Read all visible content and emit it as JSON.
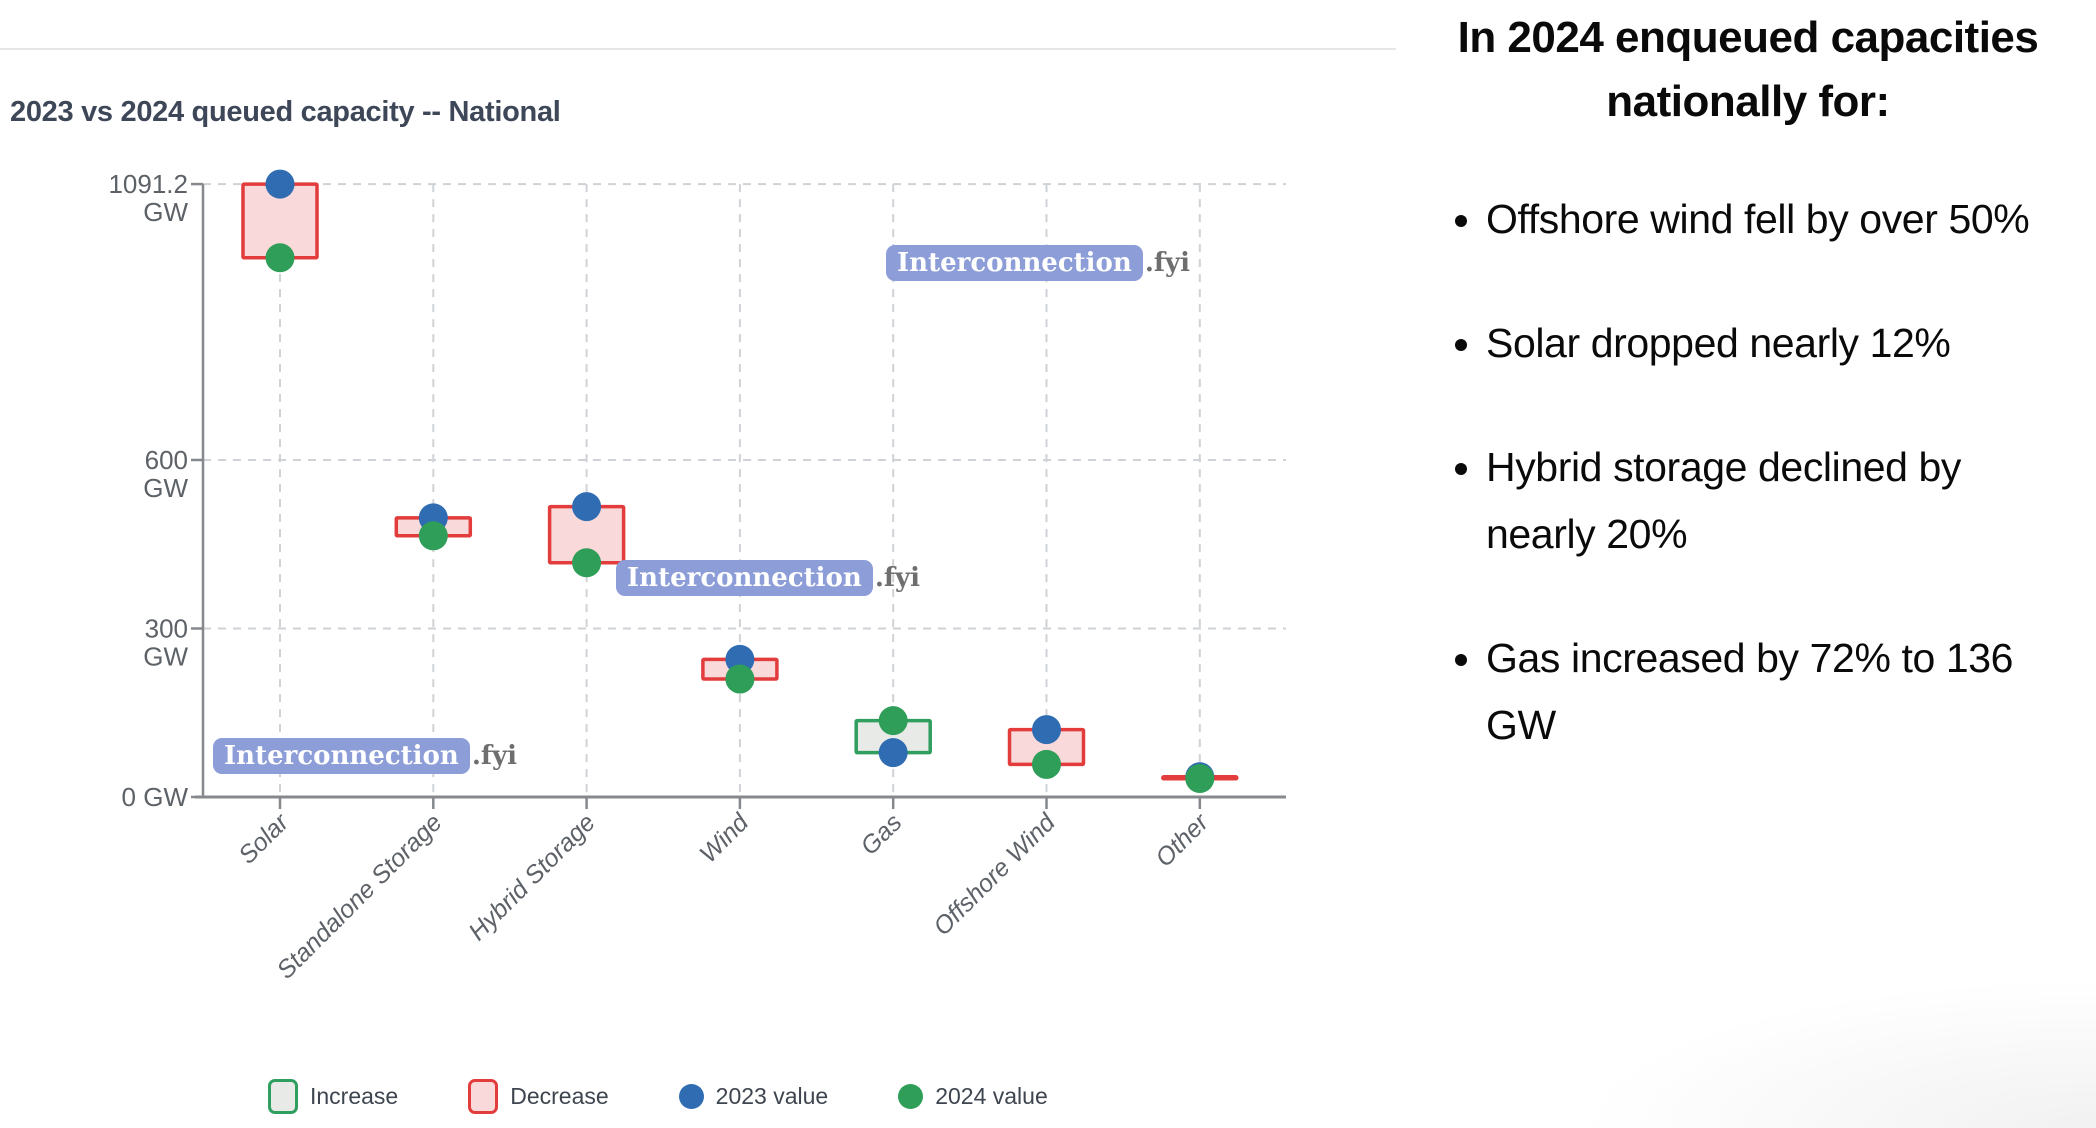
{
  "chart": {
    "watermark": {
      "pill": "Interconnection",
      "suffix": ".fyi"
    },
    "legend": [
      {
        "label": "Increase",
        "swatch": "box-increase"
      },
      {
        "label": "Decrease",
        "swatch": "box-decrease"
      },
      {
        "label": "2023 value",
        "swatch": "dot-2023"
      },
      {
        "label": "2024 value",
        "swatch": "dot-2024"
      }
    ]
  },
  "chart_data": {
    "type": "bar",
    "subtype": "range-dumbbell",
    "title": "2023 vs 2024 queued capacity -- National",
    "unit": "GW",
    "categories": [
      "Solar",
      "Standalone Storage",
      "Hybrid Storage",
      "Wind",
      "Gas",
      "Offshore Wind",
      "Other"
    ],
    "series": [
      {
        "name": "2023 value",
        "values": [
          1091.2,
          497,
          517,
          245,
          79,
          120,
          36
        ]
      },
      {
        "name": "2024 value",
        "values": [
          960,
          465,
          417,
          210,
          136,
          58,
          33
        ]
      }
    ],
    "change": [
      "decrease",
      "decrease",
      "decrease",
      "decrease",
      "increase",
      "decrease",
      "decrease"
    ],
    "yticks": [
      {
        "value": 1091.2,
        "lines": [
          "1091.2",
          "GW"
        ]
      },
      {
        "value": 600,
        "lines": [
          "600",
          "GW"
        ]
      },
      {
        "value": 300,
        "lines": [
          "300",
          "GW"
        ]
      },
      {
        "value": 0,
        "lines": [
          "0 GW"
        ]
      }
    ],
    "ylim": [
      0,
      1091.2
    ],
    "grid": "dashed",
    "legend_position": "bottom"
  },
  "colors": {
    "increase_fill": "#e7eae7",
    "increase_stroke": "#2f9e5f",
    "decrease_fill": "#f9d9da",
    "decrease_stroke": "#e23c3c",
    "dot_2023": "#2f6cb2",
    "dot_2024": "#2f9e59",
    "watermark_bg": "#8c9dd7",
    "watermark_suffix": "#6e6e6e",
    "title_text": "#3d4758"
  },
  "panel": {
    "heading": "In 2024 enqueued capacities nationally for:",
    "bullets": [
      "Offshore wind fell by over 50%",
      "Solar dropped nearly 12%",
      "Hybrid storage declined by nearly 20%",
      "Gas increased by 72% to 136 GW"
    ]
  }
}
